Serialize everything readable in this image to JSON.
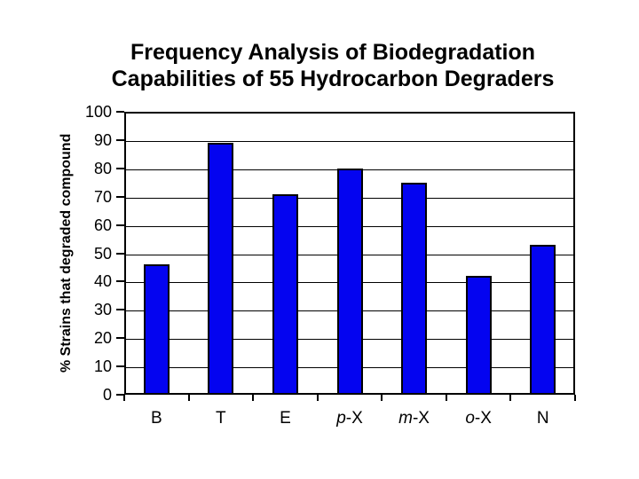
{
  "title": {
    "line1": "Frequency Analysis of Biodegradation",
    "line2": "Capabilities of 55 Hydrocarbon Degraders"
  },
  "chart_data": {
    "type": "bar",
    "title": "Frequency Analysis of Biodegradation Capabilities of 55 Hydrocarbon Degraders",
    "xlabel": "",
    "ylabel": "% Strains that degraded compound",
    "categories": [
      "B",
      "T",
      "E",
      "p-X",
      "m-X",
      "o-X",
      "N"
    ],
    "italic_category_prefixes": [
      "p",
      "m",
      "o"
    ],
    "values": [
      46,
      89,
      71,
      80,
      75,
      42,
      53
    ],
    "ylim": [
      0,
      100
    ],
    "yticks": [
      0,
      10,
      20,
      30,
      40,
      50,
      60,
      70,
      80,
      90,
      100
    ],
    "grid": "horizontal",
    "legend_position": "none",
    "bar_color": "#0404f0",
    "bar_border_color": "#000000",
    "axis_color": "#000000",
    "gridline_color": "#000000",
    "text_color": "#000000",
    "background_color": "#ffffff"
  }
}
